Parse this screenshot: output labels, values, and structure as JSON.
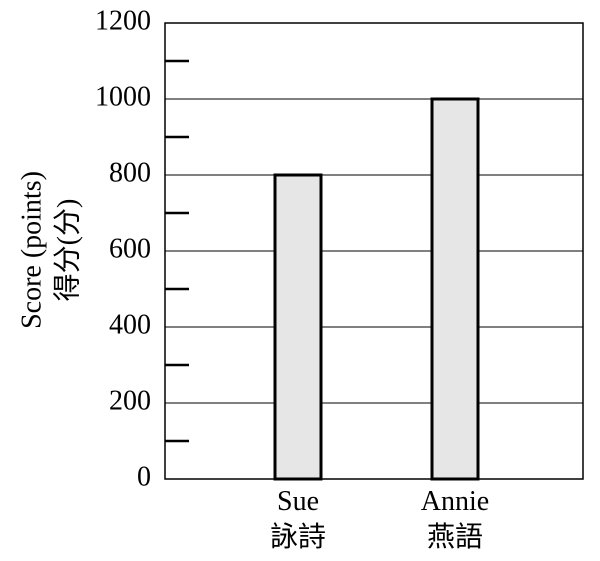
{
  "chart_data": {
    "type": "bar",
    "categories": [
      {
        "line1": "Sue",
        "line2": "詠詩"
      },
      {
        "line1": "Annie",
        "line2": "燕語"
      }
    ],
    "values": [
      800,
      1000
    ],
    "title": "",
    "xlabel": "",
    "ylabel": "Score (points)",
    "ylabel2": "得分(分)",
    "ylim": [
      0,
      1200
    ],
    "yticks": [
      0,
      200,
      400,
      600,
      800,
      1000,
      1200
    ],
    "minor_ticks": [
      100,
      300,
      500,
      700,
      900,
      1100
    ],
    "grid": true,
    "bar_fill": "#e6e6e6",
    "bar_stroke": "#000000",
    "grid_color": "#000000"
  }
}
